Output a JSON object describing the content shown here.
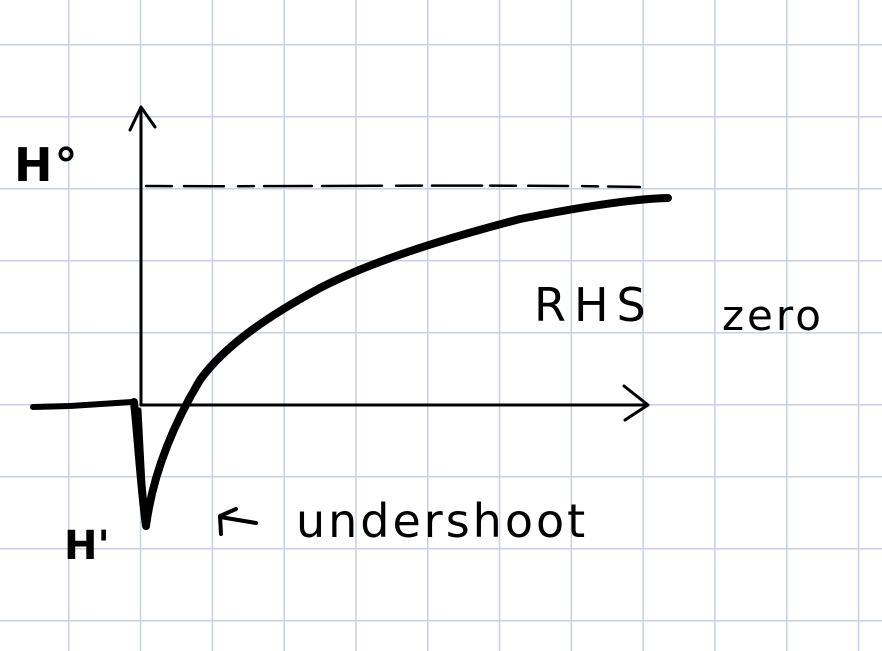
{
  "figure": {
    "labels": {
      "asymptote": "H°",
      "minimum": "H'",
      "rhs": "RHS",
      "zero": "zero",
      "annotation": "undershoot"
    },
    "colors": {
      "ink": "#000000",
      "grid": "#c5d0e6",
      "paper": "#ffffff"
    }
  }
}
